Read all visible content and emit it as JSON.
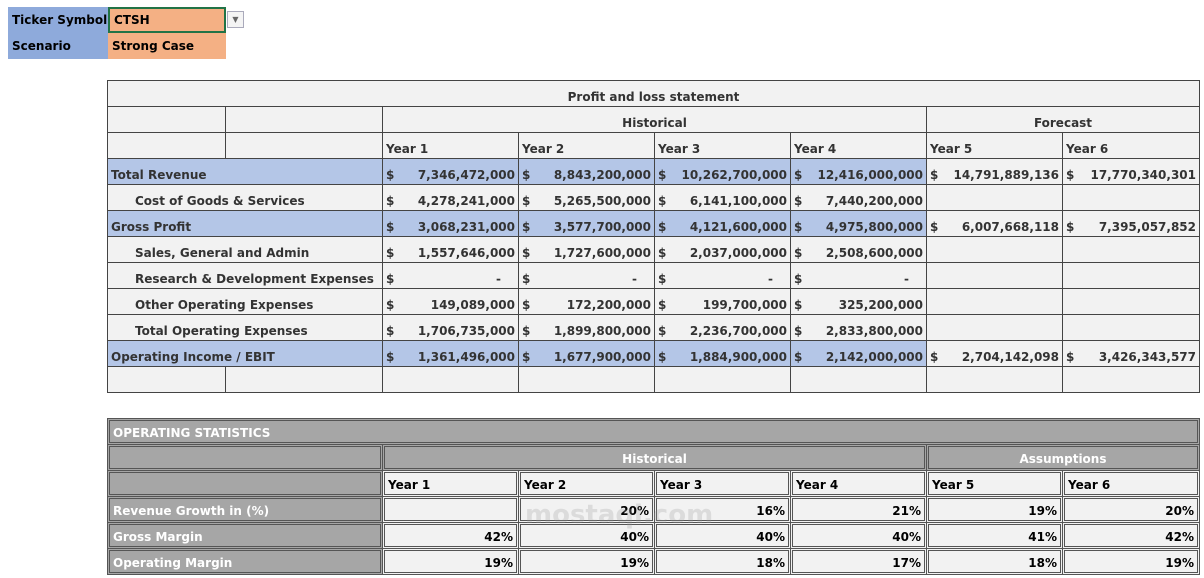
{
  "inputs": {
    "ticker_label": "Ticker Symbol",
    "ticker_value": "CTSH",
    "scenario_label": "Scenario",
    "scenario_value": "Strong Case"
  },
  "pl": {
    "title": "Profit and loss statement",
    "historical": "Historical",
    "forecast": "Forecast",
    "years": [
      "Year 1",
      "Year 2",
      "Year 3",
      "Year 4",
      "Year 5",
      "Year 6"
    ],
    "rows": [
      {
        "label": "Total Revenue",
        "highlight": true,
        "indent": false,
        "values": [
          "7,346,472,000",
          "8,843,200,000",
          "10,262,700,000",
          "12,416,000,000",
          "14,791,889,136",
          "17,770,340,301"
        ]
      },
      {
        "label": "Cost of Goods & Services",
        "highlight": false,
        "indent": true,
        "values": [
          "4,278,241,000",
          "5,265,500,000",
          "6,141,100,000",
          "7,440,200,000",
          "",
          ""
        ]
      },
      {
        "label": "Gross Profit",
        "highlight": true,
        "indent": false,
        "values": [
          "3,068,231,000",
          "3,577,700,000",
          "4,121,600,000",
          "4,975,800,000",
          "6,007,668,118",
          "7,395,057,852"
        ]
      },
      {
        "label": "Sales, General and Admin",
        "highlight": false,
        "indent": true,
        "values": [
          "1,557,646,000",
          "1,727,600,000",
          "2,037,000,000",
          "2,508,600,000",
          "",
          ""
        ]
      },
      {
        "label": "Research & Development Expenses",
        "highlight": false,
        "indent": true,
        "values": [
          "-",
          "-",
          "-",
          "-",
          "",
          ""
        ]
      },
      {
        "label": "Other Operating Expenses",
        "highlight": false,
        "indent": true,
        "values": [
          "149,089,000",
          "172,200,000",
          "199,700,000",
          "325,200,000",
          "",
          ""
        ]
      },
      {
        "label": "Total Operating Expenses",
        "highlight": false,
        "indent": true,
        "values": [
          "1,706,735,000",
          "1,899,800,000",
          "2,236,700,000",
          "2,833,800,000",
          "",
          ""
        ]
      },
      {
        "label": "Operating Income / EBIT",
        "highlight": true,
        "indent": false,
        "values": [
          "1,361,496,000",
          "1,677,900,000",
          "1,884,900,000",
          "2,142,000,000",
          "2,704,142,098",
          "3,426,343,577"
        ]
      }
    ],
    "currency": "$"
  },
  "stats": {
    "title": "OPERATING STATISTICS",
    "historical": "Historical",
    "assumptions": "Assumptions",
    "years": [
      "Year 1",
      "Year 2",
      "Year 3",
      "Year 4",
      "Year 5",
      "Year 6"
    ],
    "rows": [
      {
        "label": "Revenue Growth in (%)",
        "values": [
          "",
          "20%",
          "16%",
          "21%",
          "19%",
          "20%"
        ]
      },
      {
        "label": "Gross Margin",
        "values": [
          "42%",
          "40%",
          "40%",
          "40%",
          "41%",
          "42%"
        ]
      },
      {
        "label": "Operating Margin",
        "values": [
          "19%",
          "19%",
          "18%",
          "17%",
          "18%",
          "19%"
        ]
      }
    ]
  },
  "watermark": "مستقل mostaql.com"
}
